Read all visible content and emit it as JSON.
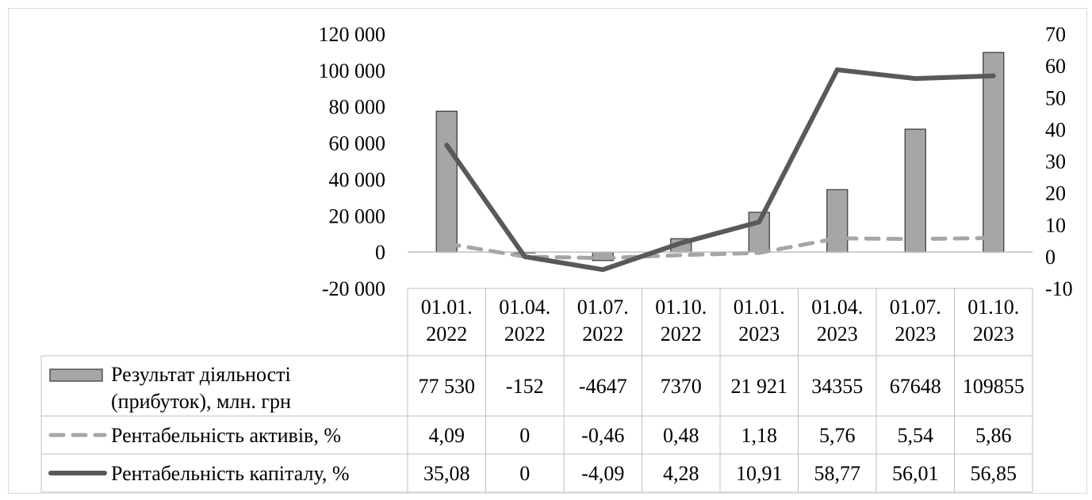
{
  "chart_data": {
    "type": "bar",
    "categories": [
      [
        "01.01.",
        "2022"
      ],
      [
        "01.04.",
        "2022"
      ],
      [
        "01.07.",
        "2022"
      ],
      [
        "01.10.",
        "2022"
      ],
      [
        "01.01.",
        "2023"
      ],
      [
        "01.04.",
        "2023"
      ],
      [
        "01.07.",
        "2023"
      ],
      [
        "01.10.",
        "2023"
      ]
    ],
    "left_axis": {
      "ylim": [
        -20000,
        120000
      ],
      "ticks": [
        120000,
        100000,
        80000,
        60000,
        40000,
        20000,
        0,
        -20000
      ],
      "tick_labels": [
        "120 000",
        "100 000",
        "80 000",
        "60 000",
        "40 000",
        "20 000",
        "0",
        "-20 000"
      ]
    },
    "right_axis": {
      "ylim": [
        -10,
        70
      ],
      "ticks": [
        70,
        60,
        50,
        40,
        30,
        20,
        10,
        0,
        -10
      ],
      "tick_labels": [
        "70",
        "60",
        "50",
        "40",
        "30",
        "20",
        "10",
        "0",
        "-10"
      ]
    },
    "grid": false,
    "legend": "data-table",
    "series": [
      {
        "name_lines": [
          "Результат діяльності",
          "(прибуток), млн. грн"
        ],
        "kind": "bar",
        "axis": "left",
        "color": "#a6a6a6",
        "values": [
          77530,
          -152,
          -4647,
          7370,
          21921,
          34355,
          67648,
          109855
        ],
        "labels": [
          "77 530",
          "-152",
          "-4647",
          "7370",
          "21 921",
          "34355",
          "67648",
          "109855"
        ]
      },
      {
        "name_lines": [
          "Рентабельність активів, %"
        ],
        "kind": "line-dashed",
        "axis": "right",
        "color": "#a6a6a6",
        "values": [
          4.09,
          0,
          -0.46,
          0.48,
          1.18,
          5.76,
          5.54,
          5.86
        ],
        "labels": [
          "4,09",
          "0",
          "-0,46",
          "0,48",
          "1,18",
          "5,76",
          "5,54",
          "5,86"
        ]
      },
      {
        "name_lines": [
          "Рентабельність капіталу, %"
        ],
        "kind": "line",
        "axis": "right",
        "color": "#595959",
        "values": [
          35.08,
          0,
          -4.09,
          4.28,
          10.91,
          58.77,
          56.01,
          56.85
        ],
        "labels": [
          "35,08",
          "0",
          "-4,09",
          "4,28",
          "10,91",
          "58,77",
          "56,01",
          "56,85"
        ]
      }
    ]
  }
}
